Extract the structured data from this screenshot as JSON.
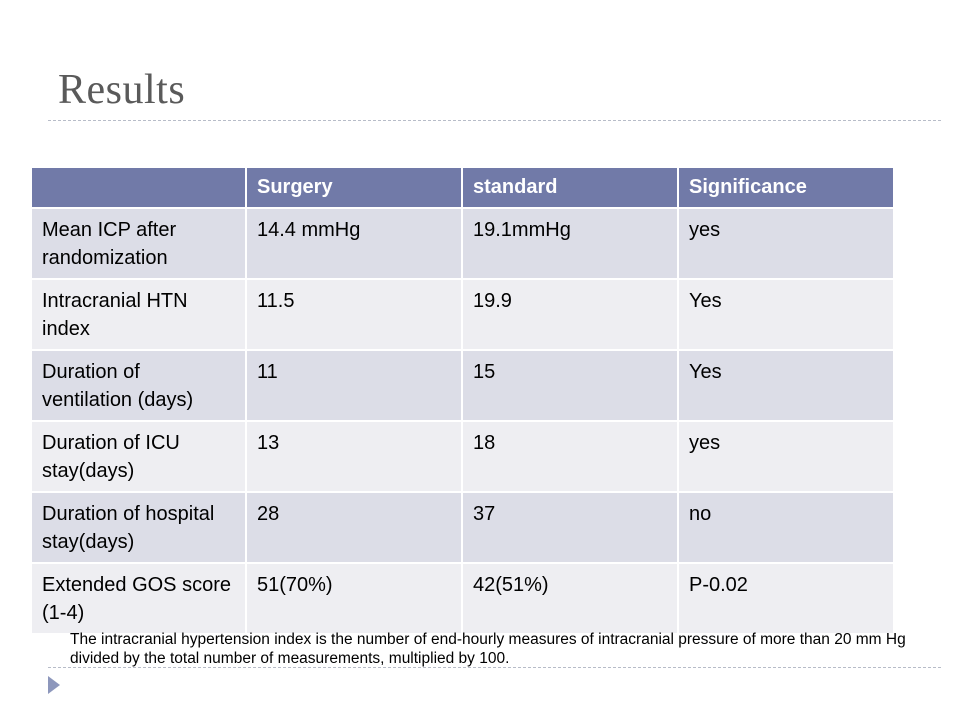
{
  "slide": {
    "title": "Results",
    "table": {
      "headers": [
        "",
        "Surgery",
        "standard",
        "Significance"
      ],
      "rows": [
        [
          "Mean ICP after randomization",
          "14.4 mmHg",
          "19.1mmHg",
          "yes"
        ],
        [
          "Intracranial HTN index",
          "11.5",
          "19.9",
          "Yes"
        ],
        [
          "Duration of ventilation (days)",
          "11",
          "15",
          "Yes"
        ],
        [
          "Duration of ICU stay(days)",
          "13",
          "18",
          "yes"
        ],
        [
          "Duration of hospital stay(days)",
          "28",
          "37",
          "no"
        ],
        [
          "Extended GOS score (1-4)",
          "51(70%)",
          "42(51%)",
          "P-0.02"
        ]
      ]
    },
    "footnote": "The intracranial hypertension index is the number of end-hourly measures of intracranial pressure of more than  20 mm Hg divided by the total number of measurements, multiplied by 100.",
    "colors": {
      "header": "#717aa8",
      "row_dark": "#dcdde7",
      "row_light": "#eeeef2",
      "title": "#5a5a5a",
      "bullet": "#8d97bc"
    },
    "bullet_icon": "triangle-right-icon"
  }
}
